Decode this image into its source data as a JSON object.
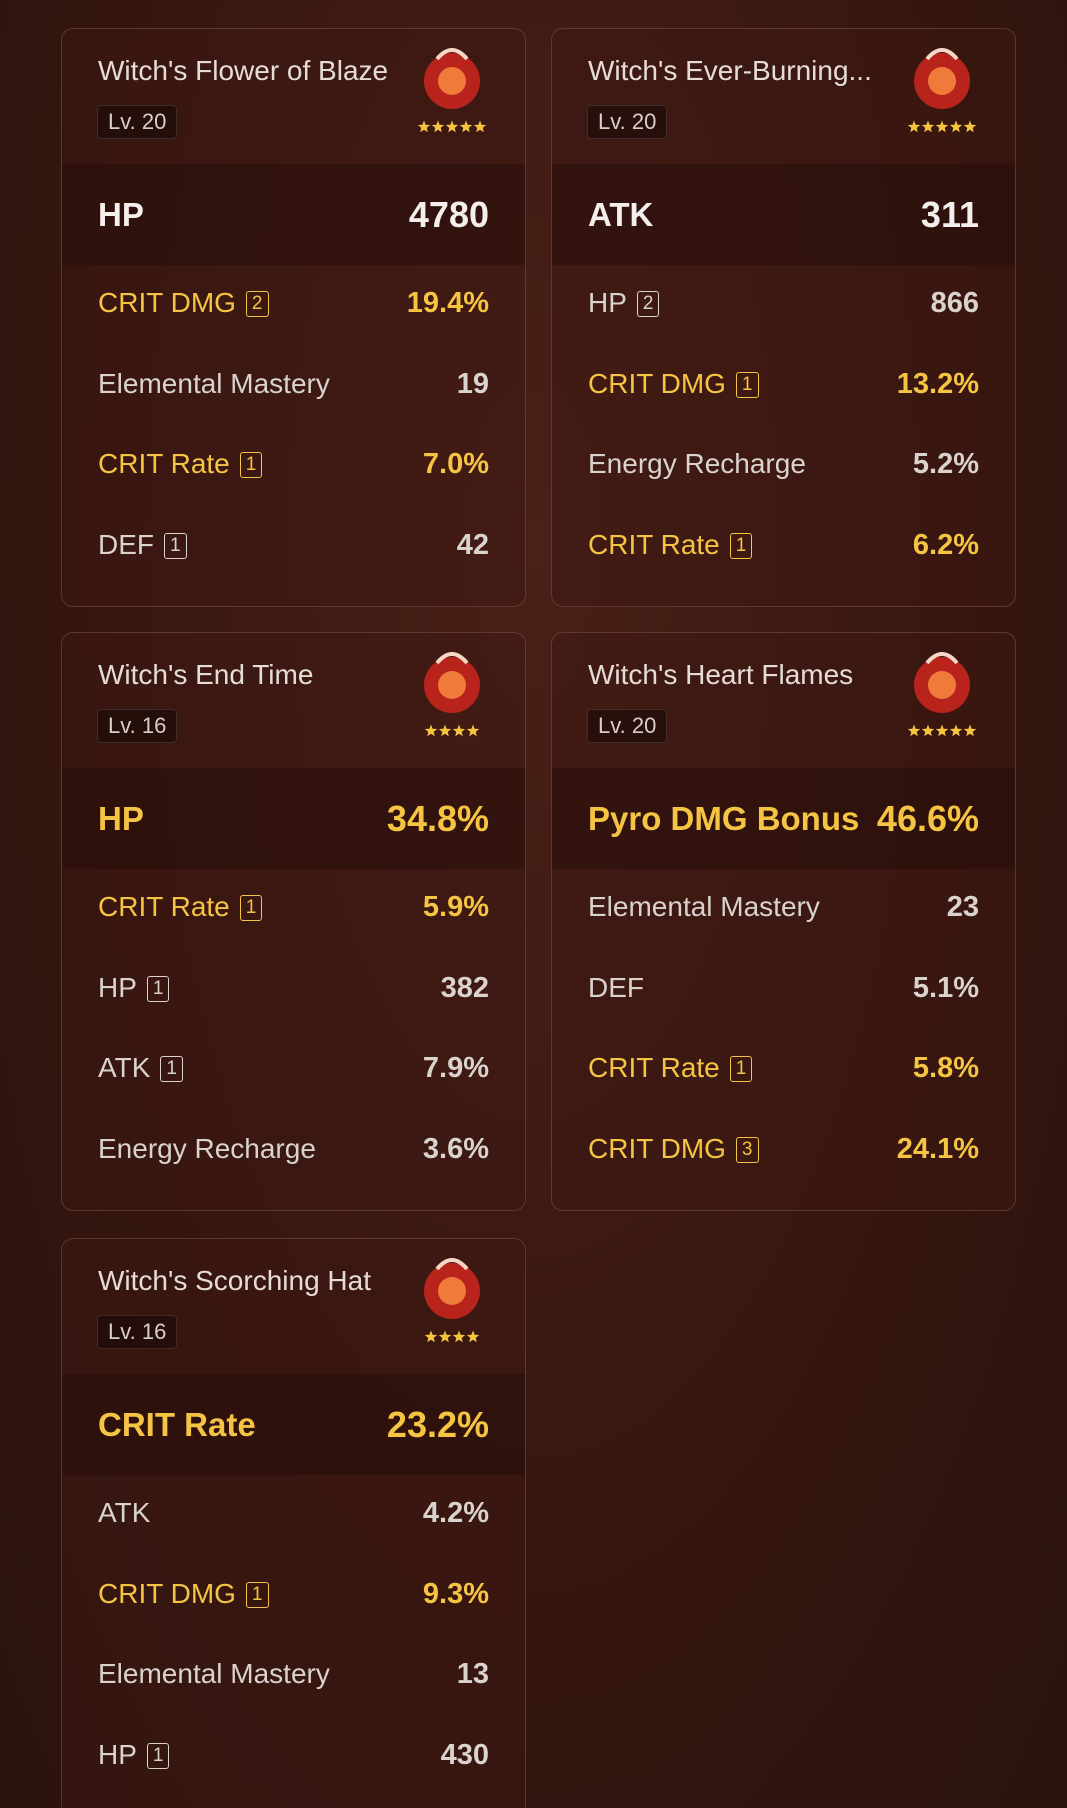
{
  "artifacts": [
    {
      "name": "Witch's Flower of Blaze",
      "level": "Lv. 20",
      "rarity": 5,
      "main": {
        "name": "HP",
        "value": "4780",
        "highlight": false
      },
      "substats": [
        {
          "name": "CRIT DMG",
          "rolls": "2",
          "value": "19.4%",
          "highlight": true
        },
        {
          "name": "Elemental Mastery",
          "value": "19",
          "highlight": false
        },
        {
          "name": "CRIT Rate",
          "rolls": "1",
          "value": "7.0%",
          "highlight": true
        },
        {
          "name": "DEF",
          "rolls": "1",
          "value": "42",
          "highlight": false
        }
      ]
    },
    {
      "name": "Witch's Ever-Burning...",
      "level": "Lv. 20",
      "rarity": 5,
      "main": {
        "name": "ATK",
        "value": "311",
        "highlight": false
      },
      "substats": [
        {
          "name": "HP",
          "rolls": "2",
          "value": "866",
          "highlight": false
        },
        {
          "name": "CRIT DMG",
          "rolls": "1",
          "value": "13.2%",
          "highlight": true
        },
        {
          "name": "Energy Recharge",
          "value": "5.2%",
          "highlight": false
        },
        {
          "name": "CRIT Rate",
          "rolls": "1",
          "value": "6.2%",
          "highlight": true
        }
      ]
    },
    {
      "name": "Witch's End Time",
      "level": "Lv. 16",
      "rarity": 4,
      "main": {
        "name": "HP",
        "value": "34.8%",
        "highlight": true
      },
      "substats": [
        {
          "name": "CRIT Rate",
          "rolls": "1",
          "value": "5.9%",
          "highlight": true
        },
        {
          "name": "HP",
          "rolls": "1",
          "value": "382",
          "highlight": false
        },
        {
          "name": "ATK",
          "rolls": "1",
          "value": "7.9%",
          "highlight": false
        },
        {
          "name": "Energy Recharge",
          "value": "3.6%",
          "highlight": false
        }
      ]
    },
    {
      "name": "Witch's Heart Flames",
      "level": "Lv. 20",
      "rarity": 5,
      "main": {
        "name": "Pyro DMG Bonus",
        "value": "46.6%",
        "highlight": true
      },
      "substats": [
        {
          "name": "Elemental Mastery",
          "value": "23",
          "highlight": false
        },
        {
          "name": "DEF",
          "value": "5.1%",
          "highlight": false
        },
        {
          "name": "CRIT Rate",
          "rolls": "1",
          "value": "5.8%",
          "highlight": true
        },
        {
          "name": "CRIT DMG",
          "rolls": "3",
          "value": "24.1%",
          "highlight": true
        }
      ]
    },
    {
      "name": "Witch's Scorching Hat",
      "level": "Lv. 16",
      "rarity": 4,
      "main": {
        "name": "CRIT Rate",
        "value": "23.2%",
        "highlight": true
      },
      "substats": [
        {
          "name": "ATK",
          "value": "4.2%",
          "highlight": false
        },
        {
          "name": "CRIT DMG",
          "rolls": "1",
          "value": "9.3%",
          "highlight": true
        },
        {
          "name": "Elemental Mastery",
          "value": "13",
          "highlight": false
        },
        {
          "name": "HP",
          "rolls": "1",
          "value": "430",
          "highlight": false
        }
      ]
    }
  ]
}
